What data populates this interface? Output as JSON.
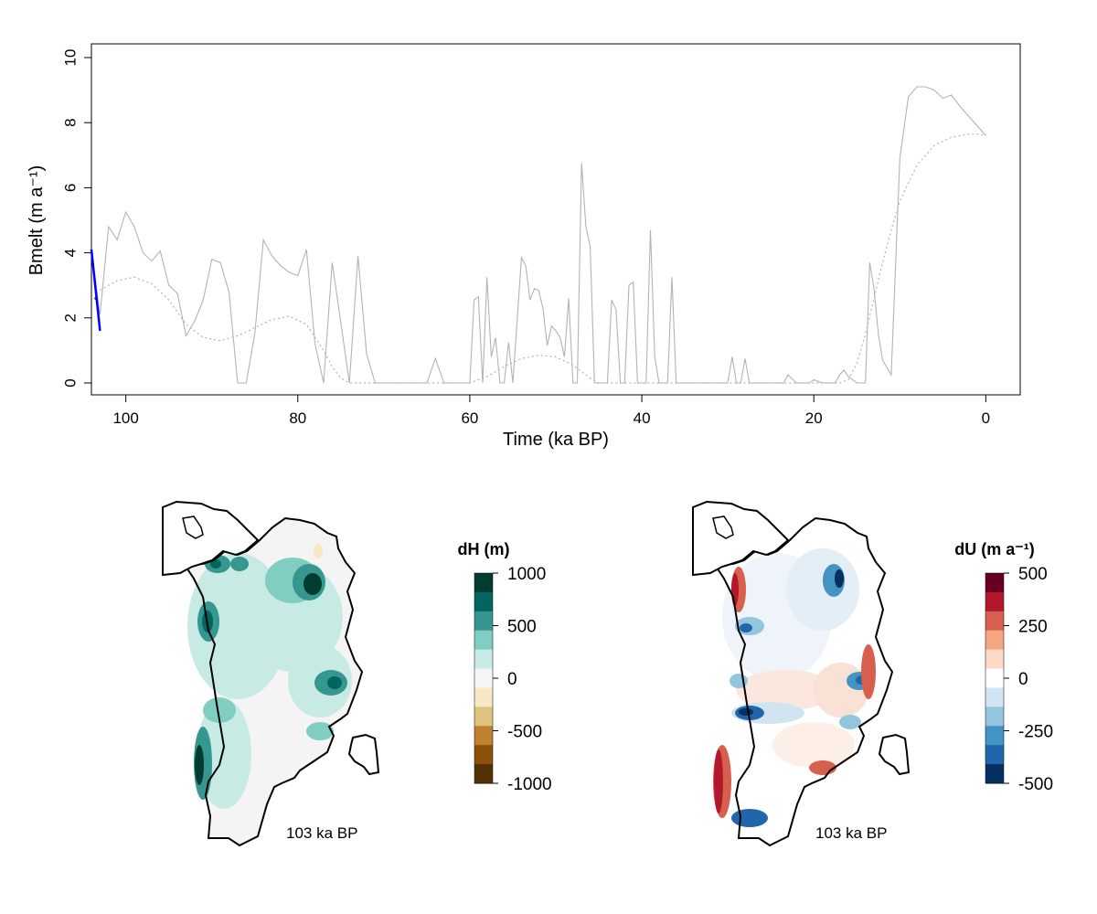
{
  "chart_data": [
    {
      "type": "line",
      "xlabel": "Time (ka BP)",
      "ylabel": "Bmelt (m a⁻¹)",
      "xlim": [
        104,
        -4
      ],
      "ylim": [
        0,
        10
      ],
      "x_ticks": [
        "100",
        "80",
        "60",
        "40",
        "20",
        "0"
      ],
      "x_tick_values": [
        100,
        80,
        60,
        40,
        20,
        0
      ],
      "y_ticks": [
        "0",
        "2",
        "4",
        "6",
        "8",
        "10"
      ],
      "y_tick_values": [
        0,
        2,
        4,
        6,
        8,
        10
      ],
      "series": [
        {
          "style": "solid-gray",
          "color": "#b3b3b3",
          "x": [
            104,
            103,
            102,
            101,
            100,
            99,
            98,
            97,
            96,
            95,
            94,
            93,
            92,
            91,
            90,
            89,
            88,
            87,
            86,
            85,
            84,
            83,
            82,
            81,
            80,
            79,
            78,
            77,
            76,
            75,
            74,
            73,
            72,
            71,
            70,
            69,
            68,
            67,
            66,
            65,
            64,
            63,
            62,
            61,
            60,
            59.5,
            59,
            58.5,
            58,
            57.5,
            57,
            56.5,
            56,
            55.5,
            55,
            54,
            53.5,
            53,
            52.5,
            52,
            51.5,
            51,
            50.5,
            50,
            49.5,
            49,
            48.5,
            48,
            47.5,
            47,
            46.5,
            46,
            45.5,
            45,
            44.5,
            44,
            43.5,
            43,
            42.5,
            42,
            41.5,
            41,
            40.5,
            40,
            39.5,
            39,
            38.5,
            38,
            37.5,
            37,
            36.5,
            36,
            35.5,
            35,
            34.5,
            34,
            33,
            32,
            31,
            30,
            29.5,
            29,
            28.5,
            28,
            27.5,
            27,
            26,
            25,
            24,
            23.5,
            23,
            22,
            21,
            20.5,
            20,
            19.5,
            19,
            18,
            17.5,
            17,
            16.5,
            16,
            15,
            14.5,
            14,
            13.5,
            13,
            12.5,
            12,
            11,
            10,
            9,
            8,
            7,
            6,
            5,
            4,
            3,
            2,
            1,
            0
          ],
          "y": [
            4.1,
            2.1,
            4.8,
            4.4,
            5.25,
            4.8,
            4.0,
            3.75,
            4.05,
            3.0,
            2.75,
            1.45,
            1.9,
            2.55,
            3.8,
            3.7,
            2.8,
            0,
            0,
            1.5,
            4.4,
            3.9,
            3.6,
            3.4,
            3.3,
            4.1,
            1.2,
            0,
            3.7,
            1.85,
            0,
            3.9,
            0.9,
            0,
            0,
            0,
            0,
            0,
            0,
            0,
            0.75,
            0,
            0,
            0,
            0,
            2.55,
            2.65,
            0,
            3.25,
            0.8,
            1.4,
            0,
            0,
            1.25,
            0,
            3.85,
            3.6,
            2.55,
            2.9,
            2.85,
            2.3,
            1.15,
            1.75,
            1.6,
            1.4,
            0.8,
            2.6,
            0,
            0,
            6.75,
            4.8,
            4.2,
            0,
            0,
            0,
            0,
            2.55,
            2.25,
            0,
            0,
            3.0,
            3.1,
            0,
            0,
            0,
            4.7,
            0.8,
            0,
            0,
            0,
            3.25,
            0,
            0,
            0,
            0,
            0,
            0,
            0,
            0,
            0,
            0.8,
            0,
            0,
            0.75,
            0,
            0,
            0,
            0,
            0,
            0,
            0.25,
            0,
            0,
            0,
            0.1,
            0.05,
            0,
            0,
            0,
            0.25,
            0.4,
            0.2,
            0,
            0,
            0,
            3.7,
            2.9,
            1.5,
            0.7,
            0.25,
            6.9,
            8.8,
            9.1,
            9.1,
            9.0,
            8.75,
            8.85,
            8.5,
            8.2,
            7.9,
            7.6
          ],
          "marker_x": [
            103.5
          ],
          "marker_y": [
            2.6
          ]
        },
        {
          "style": "dotted-gray",
          "color": "#b3b3b3",
          "x": [
            103,
            101,
            99,
            97,
            95,
            93,
            91,
            89,
            87,
            85,
            83,
            81,
            79,
            77,
            76,
            75,
            74,
            70,
            60,
            58,
            56,
            54,
            52,
            50,
            48,
            46,
            45,
            44,
            40,
            30,
            20,
            17,
            16,
            15,
            14,
            13,
            12,
            11,
            10,
            8,
            6,
            4,
            2,
            1,
            0
          ],
          "y": [
            2.85,
            3.15,
            3.25,
            3.05,
            2.55,
            1.8,
            1.4,
            1.3,
            1.45,
            1.7,
            1.95,
            2.05,
            1.8,
            1.0,
            0.5,
            0.15,
            0,
            0,
            0,
            0.2,
            0.5,
            0.75,
            0.85,
            0.8,
            0.55,
            0.15,
            0,
            0,
            0,
            0,
            0,
            0,
            0.1,
            0.6,
            1.5,
            2.6,
            3.7,
            4.7,
            5.6,
            6.7,
            7.3,
            7.55,
            7.65,
            7.65,
            7.6
          ]
        },
        {
          "style": "solid-blue",
          "color": "#0000ff",
          "x": [
            104,
            103
          ],
          "y": [
            4.1,
            1.6
          ]
        }
      ]
    },
    {
      "type": "heatmap",
      "caption": "103 ka BP",
      "legend": {
        "title": "dH (m)",
        "labels": [
          "1000",
          "500",
          "0",
          "-500",
          "-1000"
        ],
        "values": [
          1000,
          500,
          0,
          -500,
          -1000
        ],
        "colors": [
          "#003c30",
          "#01665e",
          "#35978f",
          "#80cdc1",
          "#c7eae5",
          "#f5f5f5",
          "#f6e8c3",
          "#dfc27d",
          "#bf812d",
          "#8c510a",
          "#543005"
        ]
      }
    },
    {
      "type": "heatmap",
      "caption": "103 ka BP",
      "legend": {
        "title": "dU (m a⁻¹)",
        "labels": [
          "500",
          "250",
          "0",
          "-250",
          "-500"
        ],
        "values": [
          500,
          250,
          0,
          -250,
          -500
        ],
        "colors": [
          "#67001f",
          "#b2182b",
          "#d6604d",
          "#f4a582",
          "#fddbc7",
          "#ffffff",
          "#d1e5f0",
          "#92c5de",
          "#4393c3",
          "#2166ac",
          "#053061"
        ]
      }
    }
  ]
}
